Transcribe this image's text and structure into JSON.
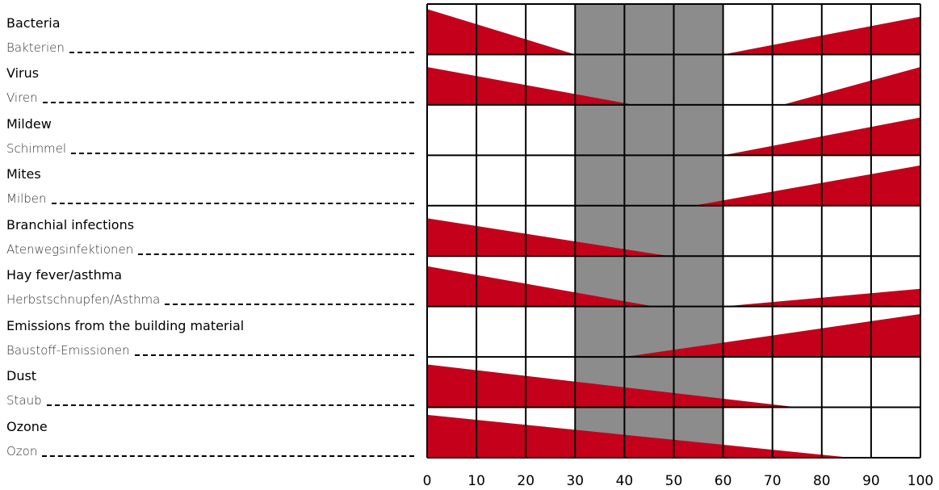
{
  "chart_data": {
    "type": "area",
    "title": "",
    "xlabel": "",
    "ylabel": "",
    "xlim": [
      0,
      100
    ],
    "x_ticks": [
      "0",
      "10",
      "20",
      "30",
      "40",
      "50",
      "60",
      "70",
      "80",
      "90",
      "100"
    ],
    "optimal_band": [
      30,
      60
    ],
    "grid": true,
    "colors": {
      "wedge": "#c4001a",
      "band": "#8c8c8c",
      "grid": "#000000"
    },
    "rows": [
      {
        "label": "Bacteria",
        "sublabel": "Bakterien",
        "left": {
          "end": 30,
          "height": 0.9
        },
        "right": {
          "start": 60,
          "height": 0.75
        }
      },
      {
        "label": "Virus",
        "sublabel": "Viren",
        "left": {
          "end": 42,
          "height": 0.75
        },
        "right": {
          "start": 72,
          "height": 0.75
        }
      },
      {
        "label": "Mildew",
        "sublabel": "Schimmel",
        "left": null,
        "right": {
          "start": 60,
          "height": 0.75
        }
      },
      {
        "label": "Mites",
        "sublabel": "Milben",
        "left": null,
        "right": {
          "start": 54,
          "height": 0.8
        }
      },
      {
        "label": "Branchial infections",
        "sublabel": "Atenwegsinfektionen",
        "left": {
          "end": 49,
          "height": 0.75
        },
        "right": null
      },
      {
        "label": "Hay fever/asthma",
        "sublabel": "Herbstschnupfen/Asthma",
        "left": {
          "end": 46,
          "height": 0.8
        },
        "right": {
          "start": 60,
          "height": 0.35
        }
      },
      {
        "label": "Emissions from the building material",
        "sublabel": "Baustoff-Emissionen",
        "left": null,
        "right": {
          "start": 40,
          "height": 0.85
        }
      },
      {
        "label": "Dust",
        "sublabel": "Staub",
        "left": {
          "end": 75,
          "height": 0.85
        },
        "right": null
      },
      {
        "label": "Ozone",
        "sublabel": "Ozon",
        "left": {
          "end": 86,
          "height": 0.85
        },
        "right": null
      }
    ]
  }
}
